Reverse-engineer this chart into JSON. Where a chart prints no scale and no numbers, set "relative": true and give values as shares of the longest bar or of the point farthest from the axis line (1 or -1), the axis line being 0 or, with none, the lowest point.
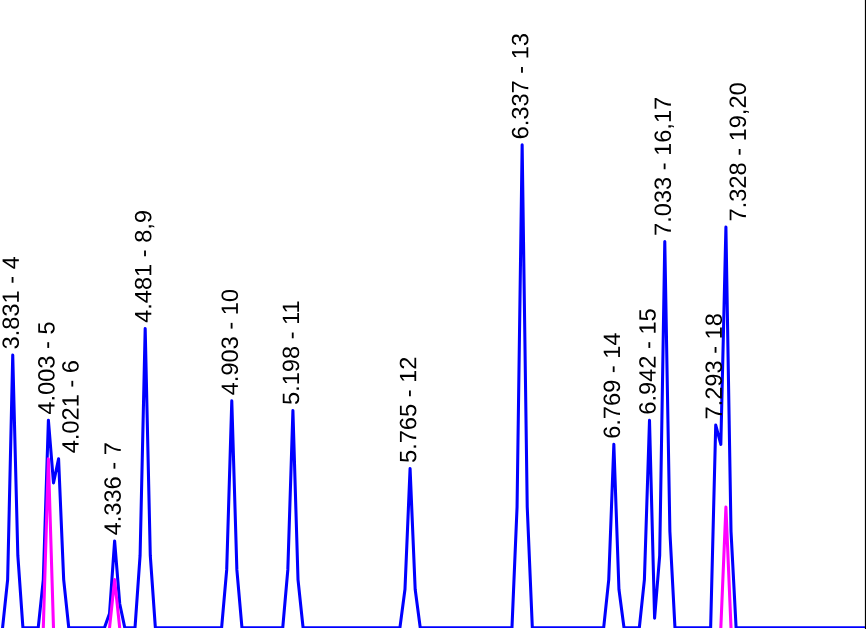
{
  "chart_data": {
    "type": "line",
    "relative": true,
    "marker": "none",
    "line_style": "solid",
    "categories": [
      null,
      null,
      null,
      null,
      null,
      null,
      null,
      null,
      null,
      null,
      null,
      null,
      null,
      null,
      null,
      null,
      null,
      null,
      null,
      null,
      null,
      null,
      null,
      null,
      null,
      null,
      null,
      null,
      null,
      null,
      null,
      null,
      null,
      null,
      null,
      null,
      null,
      null,
      null,
      null,
      null,
      null,
      null,
      null,
      null,
      null,
      null,
      null,
      null,
      null,
      null,
      null,
      null,
      null,
      null,
      null,
      null,
      null,
      null,
      null,
      null,
      null,
      null,
      null,
      null,
      null,
      null,
      null,
      null,
      null,
      null,
      null,
      null,
      null,
      null,
      null,
      null,
      null,
      null,
      null,
      null,
      null,
      null,
      null,
      null,
      null,
      null,
      null,
      null,
      null,
      null,
      null,
      null,
      null,
      null,
      null,
      null,
      null,
      null,
      null,
      null,
      null,
      null,
      null,
      null,
      null,
      null,
      null,
      null,
      null,
      null,
      null,
      null,
      null,
      null,
      null,
      null,
      null,
      null,
      null,
      null,
      null,
      null,
      null,
      null,
      null,
      null,
      null,
      null,
      null,
      null,
      null,
      null,
      null,
      null,
      null,
      null,
      null,
      null,
      null,
      null,
      null,
      null,
      null,
      null,
      null,
      null,
      null,
      null,
      null,
      null,
      null,
      null,
      null,
      null,
      null,
      null,
      null,
      null,
      null,
      null,
      null,
      null,
      null,
      null,
      null,
      null,
      null,
      null,
      null
    ],
    "series": [
      {
        "color": "#0000ff",
        "values": [
          0,
          0.1,
          0.565,
          0.15,
          0,
          0,
          0,
          0,
          0.1,
          0.43,
          0.3,
          0.35,
          0.1,
          0,
          0,
          0,
          0,
          0,
          0,
          0,
          0,
          0.03,
          0.18,
          0.05,
          0,
          0,
          0,
          0.15,
          0.62,
          0.15,
          0,
          0,
          0,
          0,
          0,
          0,
          0,
          0,
          0,
          0,
          0,
          0,
          0,
          0,
          0.12,
          0.47,
          0.12,
          0,
          0,
          0,
          0,
          0,
          0,
          0,
          0,
          0,
          0.12,
          0.45,
          0.1,
          0,
          0,
          0,
          0,
          0,
          0,
          0,
          0,
          0,
          0,
          0,
          0,
          0,
          0,
          0,
          0,
          0,
          0,
          0,
          0,
          0.08,
          0.33,
          0.08,
          0,
          0,
          0,
          0,
          0,
          0,
          0,
          0,
          0,
          0,
          0,
          0,
          0,
          0,
          0,
          0,
          0,
          0,
          0,
          0.25,
          1,
          0.25,
          0,
          0,
          0,
          0,
          0,
          0,
          0,
          0,
          0,
          0,
          0,
          0,
          0,
          0,
          0,
          0.1,
          0.38,
          0.08,
          0,
          0,
          0,
          0,
          0.1,
          0.43,
          0.02,
          0.15,
          0.8,
          0.2,
          0,
          0,
          0,
          0,
          0,
          0,
          0,
          0,
          0.42,
          0.38,
          0.83,
          0.2,
          0,
          0,
          0,
          0,
          0,
          0,
          0,
          0,
          0,
          0,
          0,
          0,
          0,
          0,
          0,
          0,
          0,
          0,
          0,
          0,
          0,
          0,
          0,
          0,
          0,
          0
        ]
      },
      {
        "color": "#ff00ff",
        "values": [
          null,
          null,
          null,
          null,
          null,
          null,
          null,
          null,
          0,
          0.35,
          0,
          null,
          null,
          null,
          null,
          null,
          null,
          null,
          null,
          null,
          null,
          0,
          0.1,
          0,
          null,
          null,
          null,
          null,
          null,
          null,
          null,
          null,
          null,
          null,
          null,
          null,
          null,
          null,
          null,
          null,
          null,
          null,
          null,
          null,
          null,
          null,
          null,
          null,
          null,
          null,
          null,
          null,
          null,
          null,
          null,
          null,
          null,
          null,
          null,
          null,
          null,
          null,
          null,
          null,
          null,
          null,
          null,
          null,
          null,
          null,
          null,
          null,
          null,
          null,
          null,
          null,
          null,
          null,
          null,
          null,
          null,
          null,
          null,
          null,
          null,
          null,
          null,
          null,
          null,
          null,
          null,
          null,
          null,
          null,
          null,
          null,
          null,
          null,
          null,
          null,
          null,
          null,
          null,
          null,
          null,
          null,
          null,
          null,
          null,
          null,
          null,
          null,
          null,
          null,
          null,
          null,
          null,
          null,
          null,
          null,
          null,
          null,
          null,
          null,
          null,
          null,
          null,
          null,
          null,
          null,
          null,
          null,
          null,
          null,
          null,
          null,
          null,
          null,
          null,
          null,
          null,
          0,
          0.25,
          0,
          null,
          null,
          null,
          null,
          null,
          null,
          null,
          null,
          null,
          null,
          null,
          null,
          null,
          null,
          null,
          null,
          null,
          null,
          null,
          null,
          null,
          null,
          null,
          null,
          null,
          null
        ]
      }
    ],
    "annotations": [
      "3.831 - 4",
      "4.003 - 5",
      "4.021 - 6",
      "4.336 - 7",
      "4.481 - 8,9",
      "4.903 - 10",
      "5.198 - 11",
      "5.765 - 12",
      "6.337 - 13",
      "6.769 - 14",
      "6.942 - 15",
      "7.033 - 16,17",
      "7.293 - 18",
      "7.328 - 19,20"
    ]
  }
}
